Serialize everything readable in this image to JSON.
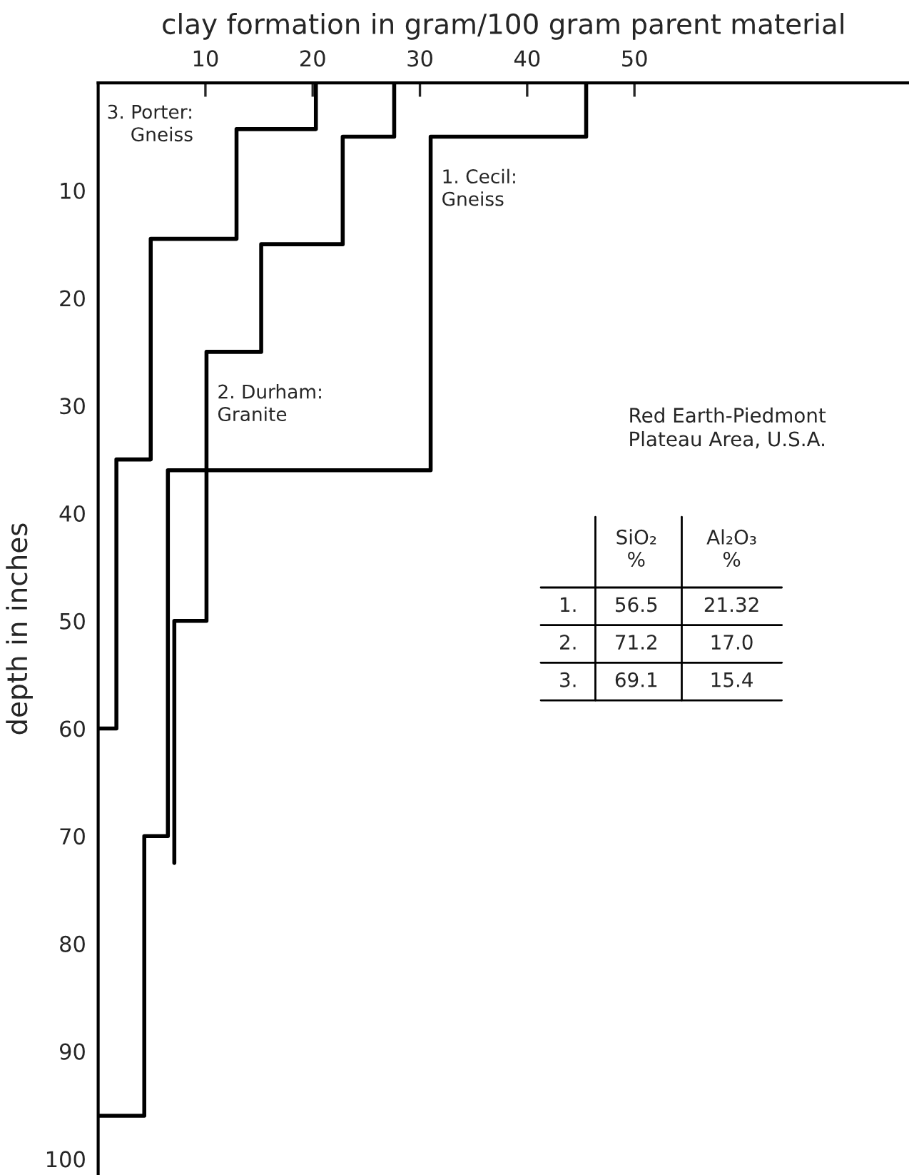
{
  "chart_data": {
    "type": "line",
    "xlabel": "clay formation in gram/100 gram parent material",
    "ylabel": "depth in inches",
    "xlim": [
      0,
      75.6
    ],
    "xticks": [
      10,
      20,
      30,
      40,
      50
    ],
    "ylim": [
      101.5,
      0
    ],
    "yticks": [
      10,
      20,
      30,
      40,
      50,
      60,
      70,
      80,
      90,
      100
    ],
    "grid": false,
    "legend": false,
    "marker": "none",
    "line_style": "solid",
    "series": [
      {
        "name": "1. Cecil:\nGneiss",
        "color": "#000000",
        "x": [
          45.5,
          45.5,
          31,
          31,
          6.5,
          6.5,
          4.3,
          4.3,
          0
        ],
        "values": [
          0,
          5,
          5,
          36,
          36,
          70,
          70,
          96,
          96
        ]
      },
      {
        "name": "2. Durham:\nGranite",
        "color": "#000000",
        "x": [
          27.6,
          27.6,
          22.8,
          22.8,
          15.2,
          15.2,
          10.1,
          10.1,
          7.1,
          7.1
        ],
        "values": [
          0,
          5,
          5,
          15,
          15,
          25,
          25,
          50,
          50,
          72.5
        ]
      },
      {
        "name": "3. Porter:\nGneiss",
        "color": "#000000",
        "x": [
          20.3,
          20.3,
          12.9,
          12.9,
          4.9,
          4.9,
          1.7,
          1.7,
          0
        ],
        "values": [
          0,
          4.3,
          4.3,
          14.5,
          14.5,
          35,
          35,
          60,
          60
        ]
      }
    ],
    "annotations": [
      "Red Earth-Piedmont\nPlateau Area, U.S.A.",
      "SiO₂\n%",
      "Al₂O₃\n%",
      "1.",
      "56.5",
      "21.32",
      "2.",
      "71.2",
      "17.0",
      "3.",
      "69.1",
      "15.4"
    ]
  }
}
